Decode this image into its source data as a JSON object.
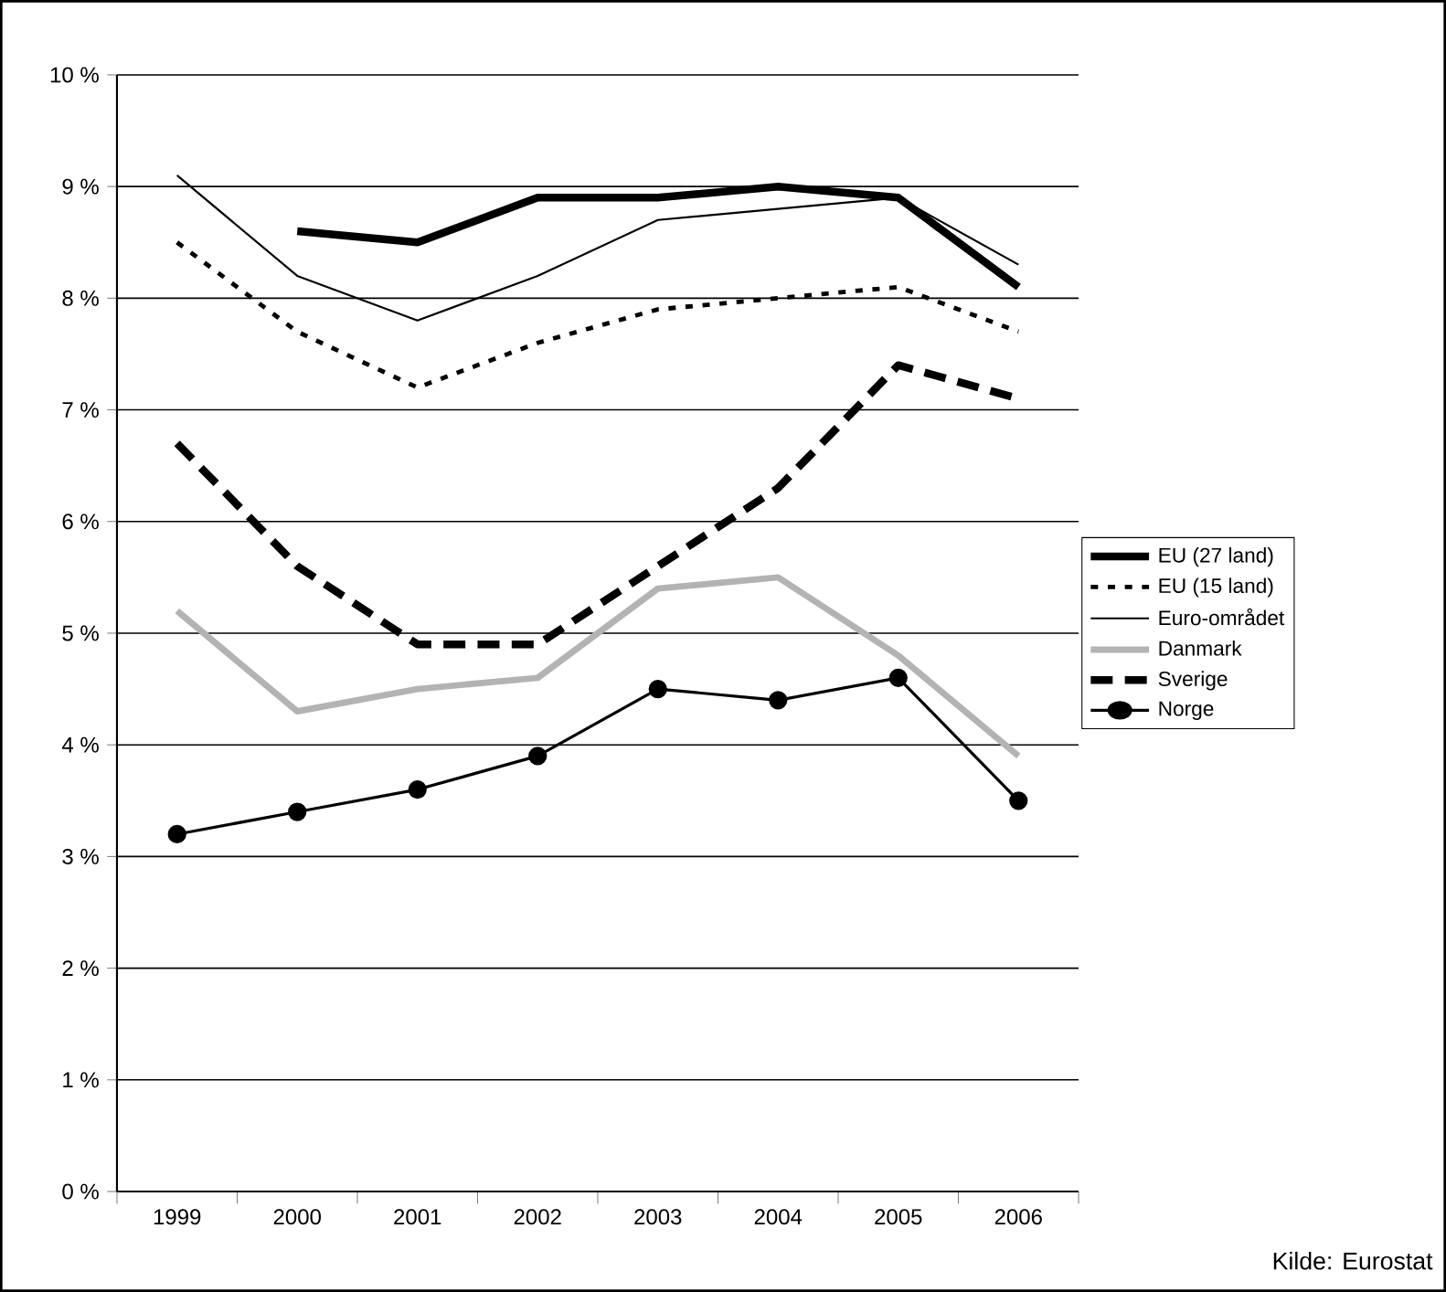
{
  "chart_data": {
    "type": "line",
    "categories": [
      "1999",
      "2000",
      "2001",
      "2002",
      "2003",
      "2004",
      "2005",
      "2006"
    ],
    "ylim": [
      0,
      10
    ],
    "yticks": [
      {
        "value": 0,
        "label": "0 %"
      },
      {
        "value": 1,
        "label": "1 %"
      },
      {
        "value": 2,
        "label": "2 %"
      },
      {
        "value": 3,
        "label": "3 %"
      },
      {
        "value": 4,
        "label": "4 %"
      },
      {
        "value": 5,
        "label": "5 %"
      },
      {
        "value": 6,
        "label": "6 %"
      },
      {
        "value": 7,
        "label": "7 %"
      },
      {
        "value": 8,
        "label": "8 %"
      },
      {
        "value": 9,
        "label": "9 %"
      },
      {
        "value": 10,
        "label": "10 %"
      }
    ],
    "grid": "y",
    "legend": "right",
    "marker": "none",
    "annotations": [
      "Kilde: Eurostat"
    ],
    "series": [
      {
        "name": "EU (27 land)",
        "color": "#000000",
        "line_style": "solid",
        "values": [
          null,
          8.6,
          8.5,
          8.9,
          8.9,
          9.0,
          8.9,
          8.1
        ]
      },
      {
        "name": "EU (15 land)",
        "color": "#000000",
        "line_style": "dotted",
        "values": [
          8.5,
          7.7,
          7.2,
          7.6,
          7.9,
          8.0,
          8.1,
          7.7
        ]
      },
      {
        "name": "Euro-området",
        "color": "#000000",
        "line_style": "solid",
        "values": [
          9.1,
          8.2,
          7.8,
          8.2,
          8.7,
          8.8,
          8.9,
          8.3
        ]
      },
      {
        "name": "Danmark",
        "color": "#b3b3b3",
        "line_style": "solid",
        "values": [
          5.2,
          4.3,
          4.5,
          4.6,
          5.4,
          5.5,
          4.8,
          3.9
        ]
      },
      {
        "name": "Sverige",
        "color": "#000000",
        "line_style": "dashed",
        "values": [
          6.7,
          5.6,
          4.9,
          4.9,
          5.6,
          6.3,
          7.4,
          7.1
        ]
      },
      {
        "name": "Norge",
        "color": "#000000",
        "line_style": "solid",
        "marker": "circle",
        "values": [
          3.2,
          3.4,
          3.6,
          3.9,
          4.5,
          4.4,
          4.6,
          3.5
        ]
      }
    ]
  }
}
